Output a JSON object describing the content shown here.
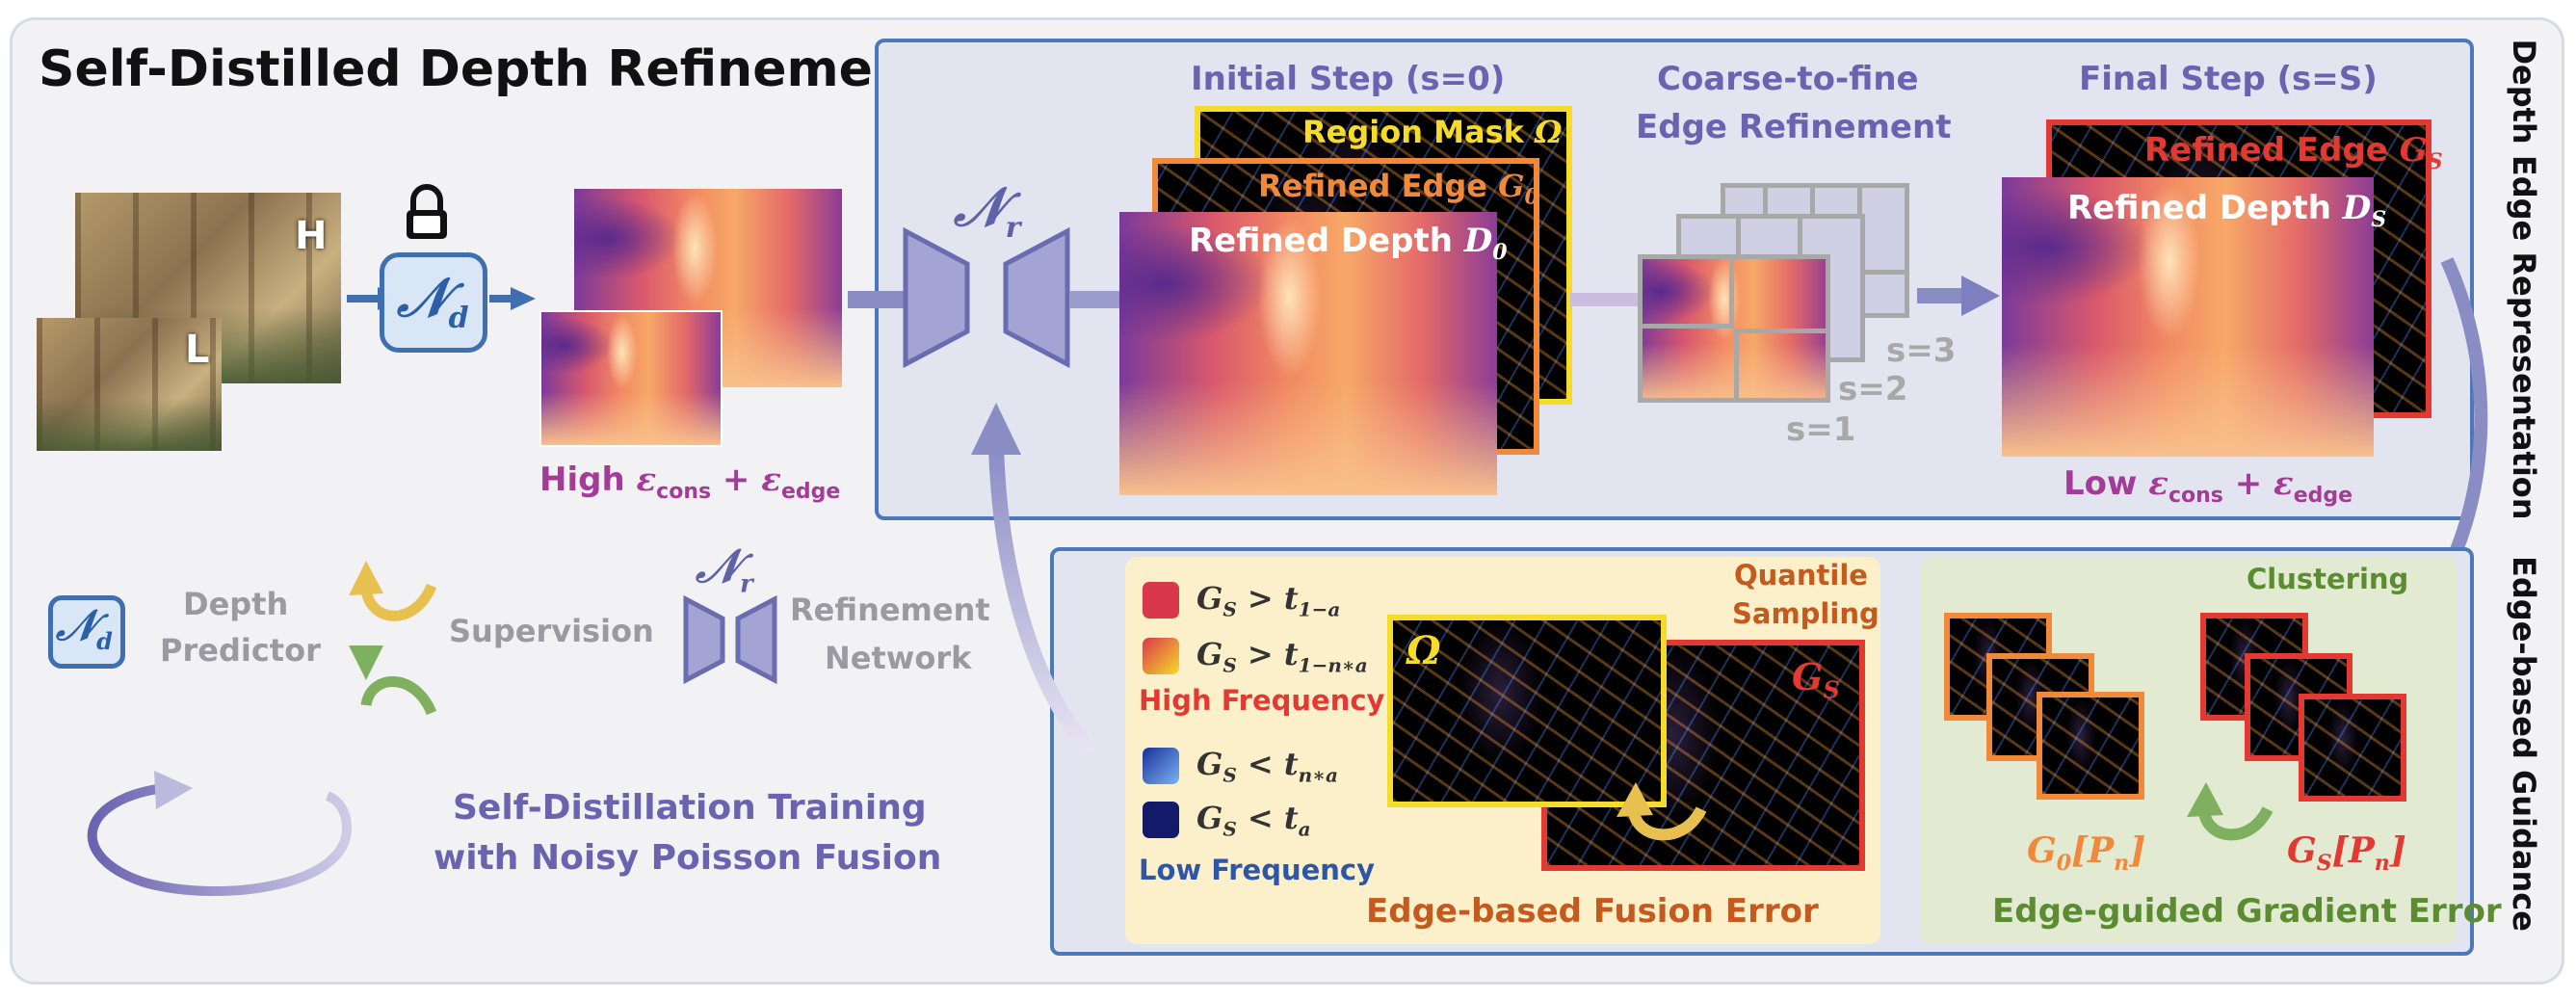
{
  "title": "Self-Distilled Depth Refinement",
  "input_labels": {
    "high_res": "H",
    "low_res": "L"
  },
  "depth_predictor_symbol": "𝒩",
  "depth_predictor_sub": "d",
  "refinement_symbol": "𝒩",
  "refinement_sub": "r",
  "high_error_label": {
    "prefix": "High ",
    "eps1": "ε",
    "sub1": "cons",
    "plus": " + ",
    "eps2": "ε",
    "sub2": "edge"
  },
  "low_error_label": {
    "prefix": "Low ",
    "eps1": "ε",
    "sub1": "cons",
    "plus": " + ",
    "eps2": "ε",
    "sub2": "edge"
  },
  "initial_step": {
    "heading": "Initial Step (s=0)",
    "region_mask": "Region Mask ",
    "region_mask_sym": "Ω",
    "refined_edge": "Refined Edge ",
    "refined_edge_sym": "G",
    "refined_edge_sub": "0",
    "refined_depth": "Refined Depth ",
    "refined_depth_sym": "D",
    "refined_depth_sub": "0"
  },
  "coarse_to_fine": {
    "heading_line1": "Coarse-to-fine",
    "heading_line2": "Edge Refinement",
    "steps": [
      "s=3",
      "s=2",
      "s=1"
    ]
  },
  "final_step": {
    "heading": "Final Step (s=S)",
    "refined_edge": "Refined Edge ",
    "refined_edge_sym": "G",
    "refined_edge_sub": "S",
    "refined_depth": "Refined Depth ",
    "refined_depth_sym": "D",
    "refined_depth_sub": "S"
  },
  "side_labels": {
    "depth_edge_representation": "Depth Edge Representation",
    "edge_based_guidance": "Edge-based Guidance"
  },
  "legend": {
    "depth_predictor_line1": "Depth",
    "depth_predictor_line2": "Predictor",
    "supervision": "Supervision",
    "refinement_line1": "Refinement",
    "refinement_line2": "Network",
    "self_distillation_line1": "Self-Distillation Training",
    "self_distillation_line2": "with Noisy Poisson Fusion"
  },
  "fusion_panel": {
    "items": [
      {
        "lhs": "G",
        "lhs_sub": "S",
        "op": " > ",
        "rhs": "t",
        "rhs_sub": "1−a",
        "color": "#d9384a"
      },
      {
        "lhs": "G",
        "lhs_sub": "S",
        "op": " > ",
        "rhs": "t",
        "rhs_sub": "1−n∗a",
        "color": "#f08a3a"
      },
      {
        "lhs": "G",
        "lhs_sub": "S",
        "op": " < ",
        "rhs": "t",
        "rhs_sub": "n∗a",
        "color": "#3a6ad8"
      },
      {
        "lhs": "G",
        "lhs_sub": "S",
        "op": " < ",
        "rhs": "t",
        "rhs_sub": "a",
        "color": "#141a6a"
      }
    ],
    "high_frequency": "High Frequency",
    "low_frequency": "Low Frequency",
    "quantile_line1": "Quantile",
    "quantile_line2": "Sampling",
    "omega_sym": "Ω",
    "gs_sym": "G",
    "gs_sub": "S",
    "title": "Edge-based Fusion Error"
  },
  "gradient_panel": {
    "clustering": "Clustering",
    "g0_label": "G",
    "g0_sub": "0",
    "gs_label": "G",
    "gs_sub": "S",
    "pn": "P",
    "pn_sub": "n",
    "title": "Edge-guided Gradient Error"
  },
  "colors": {
    "panel_border": "#4a78b8",
    "top_panel_bg": "#e2e4ef",
    "outer_bg": "#f2f2f4",
    "purple_text": "#6a63b0",
    "magenta_text": "#a43b97",
    "fusion_bg": "#fbf0c9",
    "gradient_bg": "#e2ead2",
    "orange": "#f08a3a",
    "red": "#e23a32",
    "yellow": "#f5dc2a",
    "green_text": "#5c8c32",
    "blue_text": "#2d56a8"
  }
}
